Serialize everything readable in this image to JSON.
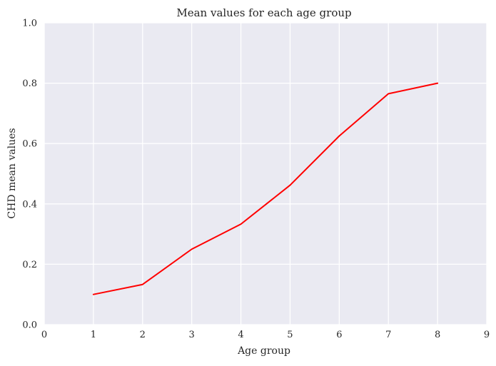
{
  "chart_data": {
    "type": "line",
    "title": "Mean values for each age group",
    "xlabel": "Age group",
    "ylabel": "CHD mean values",
    "xlim": [
      0,
      9
    ],
    "ylim": [
      0.0,
      1.0
    ],
    "xticks": [
      0,
      1,
      2,
      3,
      4,
      5,
      6,
      7,
      8,
      9
    ],
    "xtick_labels": [
      "0",
      "1",
      "2",
      "3",
      "4",
      "5",
      "6",
      "7",
      "8",
      "9"
    ],
    "yticks": [
      0.0,
      0.2,
      0.4,
      0.6,
      0.8,
      1.0
    ],
    "ytick_labels": [
      "0.0",
      "0.2",
      "0.4",
      "0.6",
      "0.8",
      "1.0"
    ],
    "grid": true,
    "background_color": "#eaeaf2",
    "grid_color": "#ffffff",
    "series": [
      {
        "color": "#ff0000",
        "x": [
          1,
          2,
          3,
          4,
          5,
          6,
          7,
          8
        ],
        "y": [
          0.1,
          0.133,
          0.25,
          0.333,
          0.462,
          0.625,
          0.765,
          0.8
        ]
      }
    ]
  }
}
